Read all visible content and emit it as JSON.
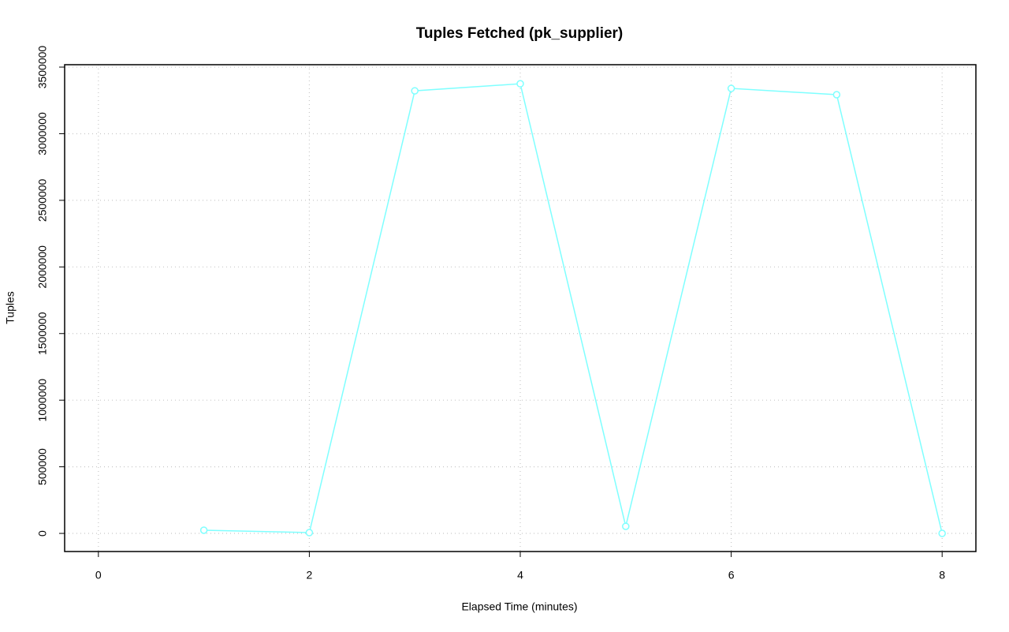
{
  "chart_data": {
    "type": "line",
    "title": "Tuples Fetched (pk_supplier)",
    "x_label": "Elapsed Time (minutes)",
    "y_label": "Tuples",
    "x": [
      1,
      2,
      3,
      4,
      5,
      6,
      7,
      8
    ],
    "series": [
      {
        "color": "#7fffff",
        "values": [
          24000,
          6000,
          3322000,
          3375000,
          53000,
          3340000,
          3293000,
          0
        ]
      }
    ],
    "xlim": [
      -0.32,
      8.32
    ],
    "ylim": [
      -136000,
      3518000
    ],
    "xticks": [
      0,
      2,
      4,
      6,
      8
    ],
    "yticks": [
      0,
      500000,
      1000000,
      1500000,
      2000000,
      2500000,
      3000000,
      3500000
    ],
    "grid": true
  }
}
